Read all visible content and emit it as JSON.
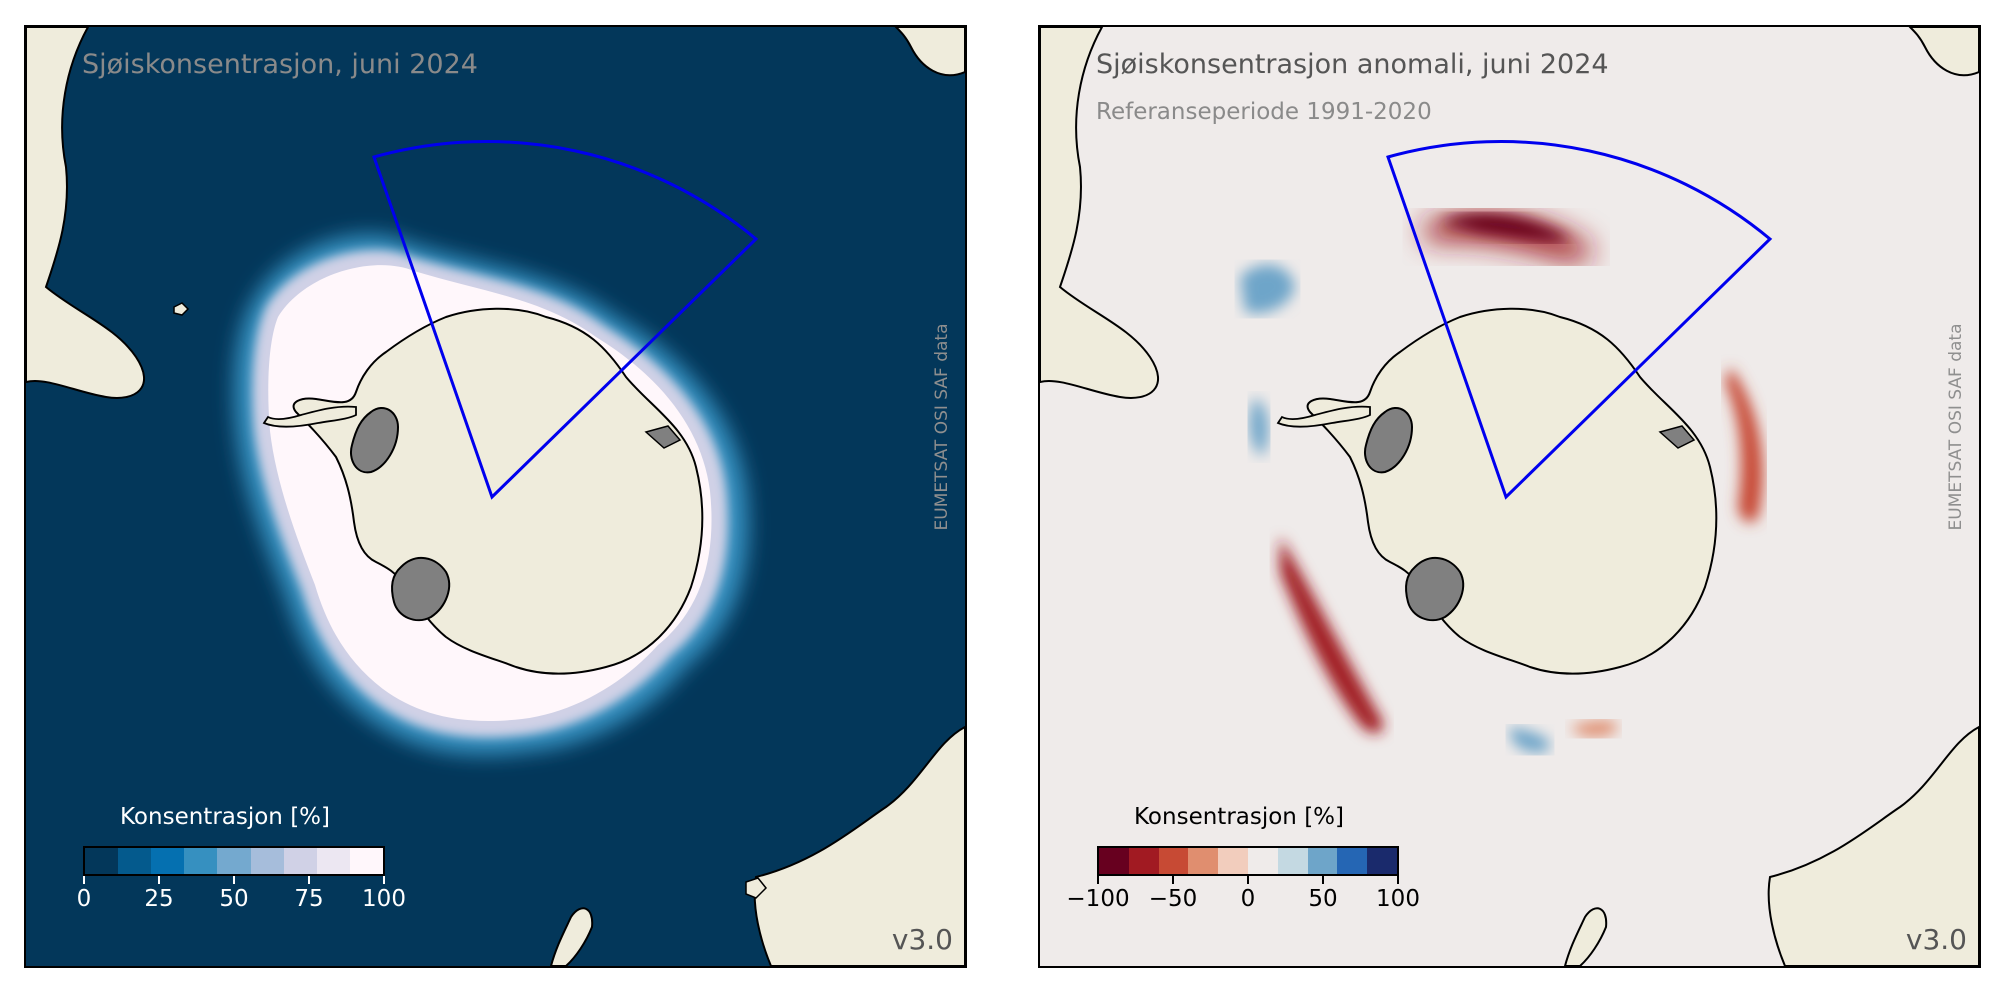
{
  "left_panel": {
    "title": "Sjøiskonsentrasjon, juni 2024",
    "credit": "EUMETSAT OSI SAF data",
    "version": "v3.0",
    "colorbar": {
      "label": "Konsentrasjon [%]",
      "ticks": [
        "0",
        "25",
        "50",
        "75",
        "100"
      ],
      "colors": [
        "#03375a",
        "#045a8d",
        "#0570b0",
        "#3690c0",
        "#74a9cf",
        "#a6bddb",
        "#d0d1e6",
        "#ece7f2",
        "#fff7fb"
      ]
    }
  },
  "right_panel": {
    "title": "Sjøiskonsentrasjon anomali, juni 2024",
    "subtitle": "Referanseperiode 1991-2020",
    "credit": "EUMETSAT OSI SAF data",
    "version": "v3.0",
    "colorbar": {
      "label": "Konsentrasjon [%]",
      "ticks": [
        "−100",
        "−50",
        "0",
        "50",
        "100"
      ],
      "colors": [
        "#67001f",
        "#a11a22",
        "#c74a34",
        "#e08e6f",
        "#f2cdbd",
        "#efebea",
        "#c4d9e2",
        "#6ea5c9",
        "#2566b4",
        "#1a2a6c"
      ]
    }
  },
  "colors": {
    "ocean_concentration": "#03375a",
    "ocean_anomaly": "#efebea",
    "land": "#efecdc",
    "ice_shelf": "#808080",
    "region_outline": "#0000ee"
  }
}
